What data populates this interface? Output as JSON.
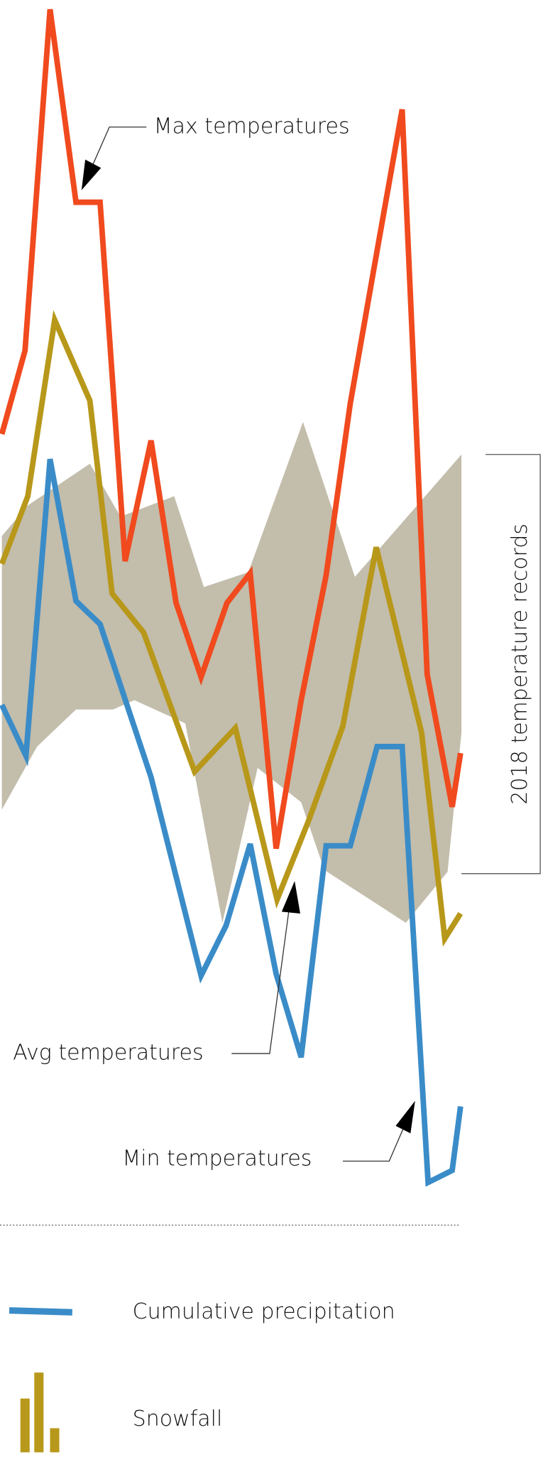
{
  "annotations": {
    "max": "Max temperatures",
    "avg": "Avg temperatures",
    "min": "Min temperatures",
    "records": "2018 temperature records"
  },
  "legend": {
    "precipitation": "Cumulative precipitation",
    "snowfall": "Snowfall"
  }
}
